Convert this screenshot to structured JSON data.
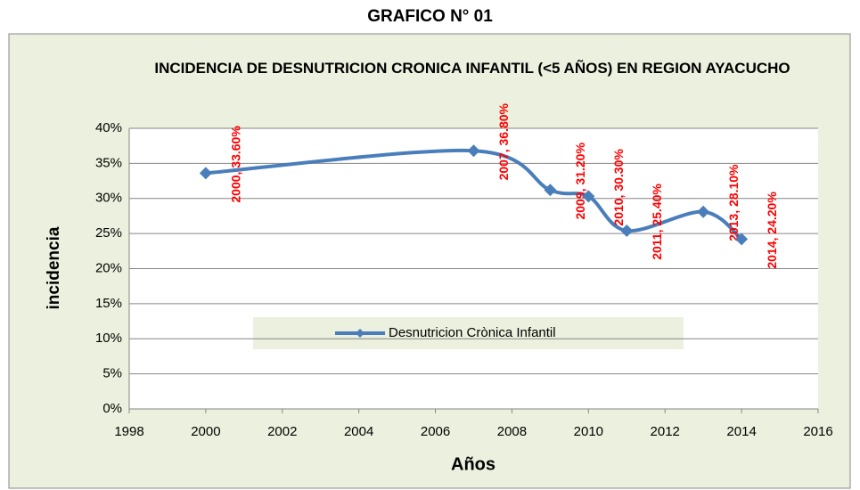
{
  "page_title": "GRAFICO N° 01",
  "chart_data": {
    "type": "line",
    "title": "INCIDENCIA DE DESNUTRICION CRONICA INFANTIL (<5 AÑOS) EN REGION AYACUCHO",
    "x_label": "Años",
    "y_label": "incidencia",
    "series": [
      {
        "name": "Desnutricion Crònica Infantil",
        "color": "#4a7ebb",
        "x": [
          2000,
          2007,
          2009,
          2010,
          2011,
          2013,
          2014
        ],
        "values": [
          33.6,
          36.8,
          31.2,
          30.3,
          25.4,
          28.1,
          24.2
        ],
        "value_labels": [
          "2000, 33.60%",
          "2007, 36.80%",
          "2009, 31.20%",
          "2010, 30.30%",
          "2011, 25.40%",
          "2013, 28.10%",
          "2014, 24.20%"
        ]
      }
    ],
    "xlim": [
      1998,
      2016
    ],
    "xticks": [
      1998,
      2000,
      2002,
      2004,
      2006,
      2008,
      2010,
      2012,
      2014,
      2016
    ],
    "ylim": [
      0,
      40
    ],
    "yticks": [
      {
        "value": 0,
        "label": "0%"
      },
      {
        "value": 5,
        "label": "5%"
      },
      {
        "value": 10,
        "label": "10%"
      },
      {
        "value": 15,
        "label": "15%"
      },
      {
        "value": 20,
        "label": "20%"
      },
      {
        "value": 25,
        "label": "25%"
      },
      {
        "value": 30,
        "label": "30%"
      },
      {
        "value": 35,
        "label": "35%"
      },
      {
        "value": 40,
        "label": "40%"
      }
    ],
    "grid": true,
    "smooth": true,
    "label_color": "#ff0000"
  }
}
